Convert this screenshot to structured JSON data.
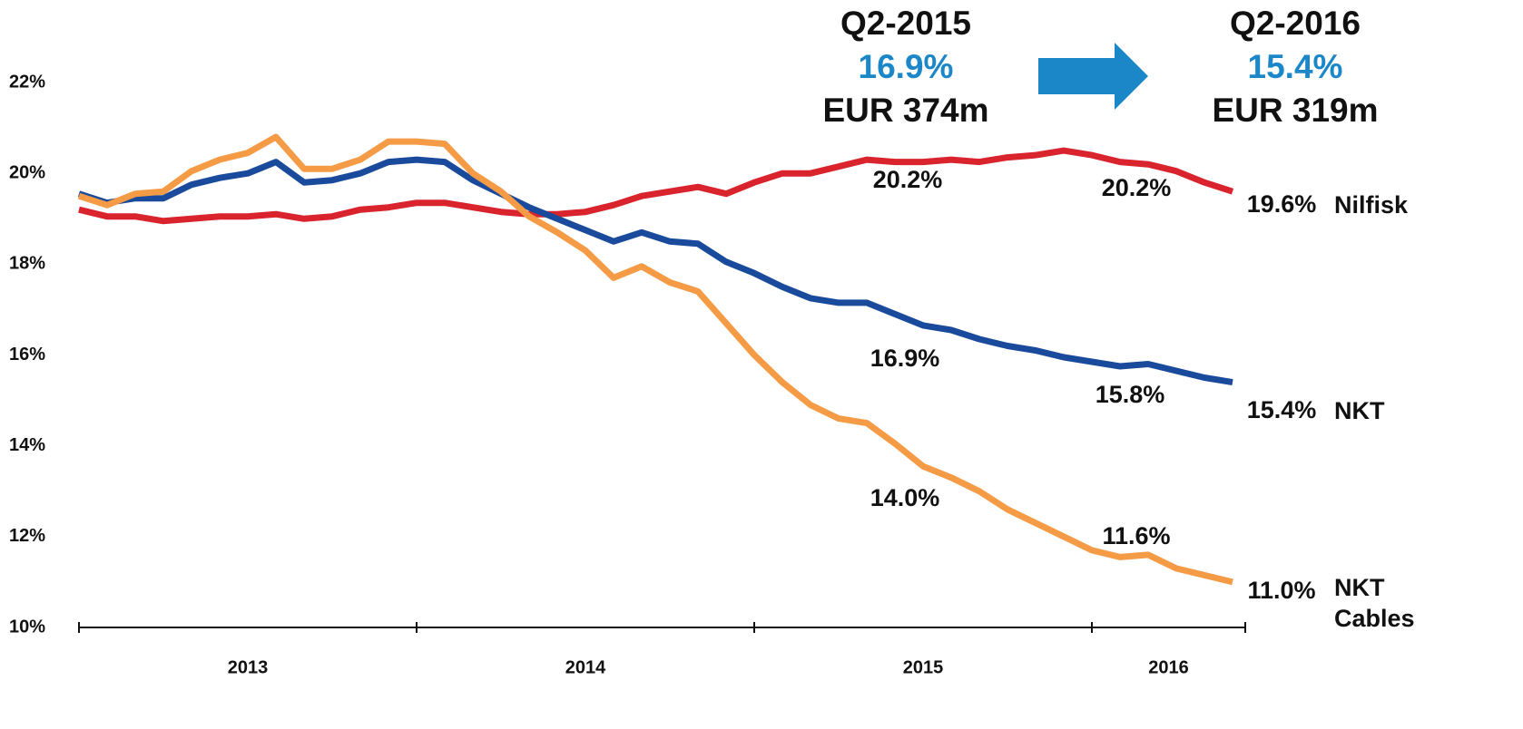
{
  "chart_data": {
    "type": "line",
    "headers": [
      {
        "period": "Q2-2015",
        "margin": "16.9%",
        "amount": "EUR 374m"
      },
      {
        "period": "Q2-2016",
        "margin": "15.4%",
        "amount": "EUR 319m"
      }
    ],
    "x_labels": [
      "2013",
      "2014",
      "2015",
      "2016"
    ],
    "ylim": [
      10,
      22
    ],
    "yticks": [
      {
        "value": 10,
        "label": "10%"
      },
      {
        "value": 12,
        "label": "12%"
      },
      {
        "value": 14,
        "label": "14%"
      },
      {
        "value": 16,
        "label": "16%"
      },
      {
        "value": 18,
        "label": "18%"
      },
      {
        "value": 20,
        "label": "20%"
      },
      {
        "value": 22,
        "label": "22%"
      }
    ],
    "series": [
      {
        "name": "Nilfisk",
        "color": "#d9232d",
        "values": [
          19.2,
          19.05,
          19.05,
          18.95,
          19.0,
          19.05,
          19.05,
          19.1,
          19.0,
          19.05,
          19.2,
          19.25,
          19.35,
          19.35,
          19.25,
          19.15,
          19.1,
          19.1,
          19.15,
          19.3,
          19.5,
          19.6,
          19.7,
          19.55,
          19.8,
          20.0,
          20.0,
          20.15,
          20.3,
          20.25,
          20.25,
          20.3,
          20.25,
          20.35,
          20.4,
          20.5,
          20.4,
          20.25,
          20.2,
          20.05,
          19.8,
          19.6
        ]
      },
      {
        "name": "NKT",
        "color": "#1a4a9c",
        "values": [
          19.55,
          19.35,
          19.45,
          19.45,
          19.75,
          19.9,
          20.0,
          20.25,
          19.8,
          19.85,
          20.0,
          20.25,
          20.3,
          20.25,
          19.85,
          19.55,
          19.25,
          19.0,
          18.75,
          18.5,
          18.7,
          18.5,
          18.45,
          18.05,
          17.8,
          17.5,
          17.25,
          17.15,
          17.15,
          16.9,
          16.65,
          16.55,
          16.35,
          16.2,
          16.1,
          15.95,
          15.85,
          15.75,
          15.8,
          15.65,
          15.5,
          15.4
        ]
      },
      {
        "name": "NKT Cables",
        "color": "#f59b45",
        "values": [
          19.5,
          19.3,
          19.55,
          19.6,
          20.05,
          20.3,
          20.45,
          20.8,
          20.1,
          20.1,
          20.3,
          20.7,
          20.7,
          20.65,
          20.0,
          19.6,
          19.05,
          18.7,
          18.3,
          17.7,
          17.95,
          17.6,
          17.4,
          16.7,
          16.0,
          15.4,
          14.9,
          14.6,
          14.5,
          14.05,
          13.55,
          13.3,
          13.0,
          12.6,
          12.3,
          12.0,
          11.7,
          11.55,
          11.6,
          11.3,
          11.15,
          11.0
        ]
      }
    ],
    "annotations": [
      "20.2%",
      "20.2%",
      "19.6%",
      "16.9%",
      "15.8%",
      "15.4%",
      "14.0%",
      "11.6%",
      "11.0%"
    ]
  }
}
